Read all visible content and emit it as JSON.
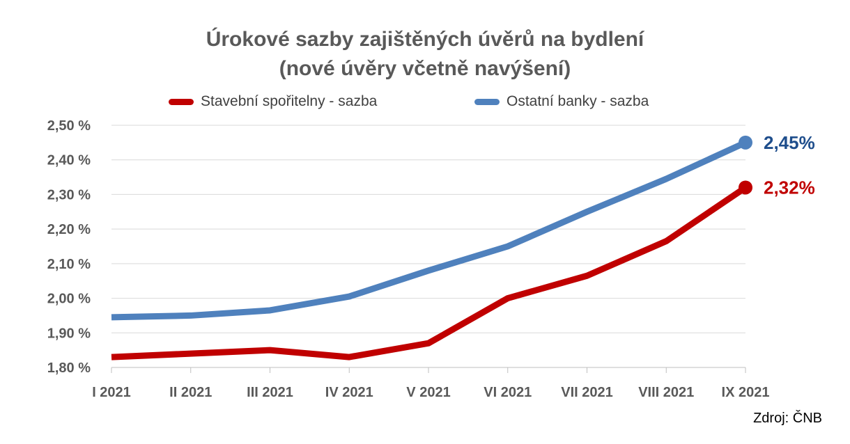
{
  "chart_data": {
    "type": "line",
    "title": "Úrokové sazby zajištěných úvěrů na bydlení",
    "subtitle": "(nové úvěry včetně navýšení)",
    "xlabel": "",
    "ylabel": "",
    "categories": [
      "I 2021",
      "II 2021",
      "III 2021",
      "IV 2021",
      "V 2021",
      "VI 2021",
      "VII 2021",
      "VIII 2021",
      "IX 2021"
    ],
    "series": [
      {
        "name": "Stavební spořitelny - sazba",
        "color": "#C00000",
        "values": [
          1.83,
          1.84,
          1.85,
          1.83,
          1.87,
          2.0,
          2.065,
          2.165,
          2.32
        ],
        "end_label": "2,32%"
      },
      {
        "name": "Ostatní banky - sazba",
        "color": "#4F81BD",
        "values": [
          1.945,
          1.95,
          1.965,
          2.005,
          2.08,
          2.15,
          2.25,
          2.345,
          2.45
        ],
        "end_label": "2,45%"
      }
    ],
    "ylim": [
      1.8,
      2.5
    ],
    "y_ticks": [
      1.8,
      1.9,
      2.0,
      2.1,
      2.2,
      2.3,
      2.4,
      2.5
    ],
    "y_tick_labels": [
      "1,80 %",
      "1,90 %",
      "2,00 %",
      "2,10 %",
      "2,20 %",
      "2,30 %",
      "2,40 %",
      "2,50 %"
    ],
    "grid": true,
    "legend_position": "top"
  },
  "source": "Zdroj: ČNB"
}
